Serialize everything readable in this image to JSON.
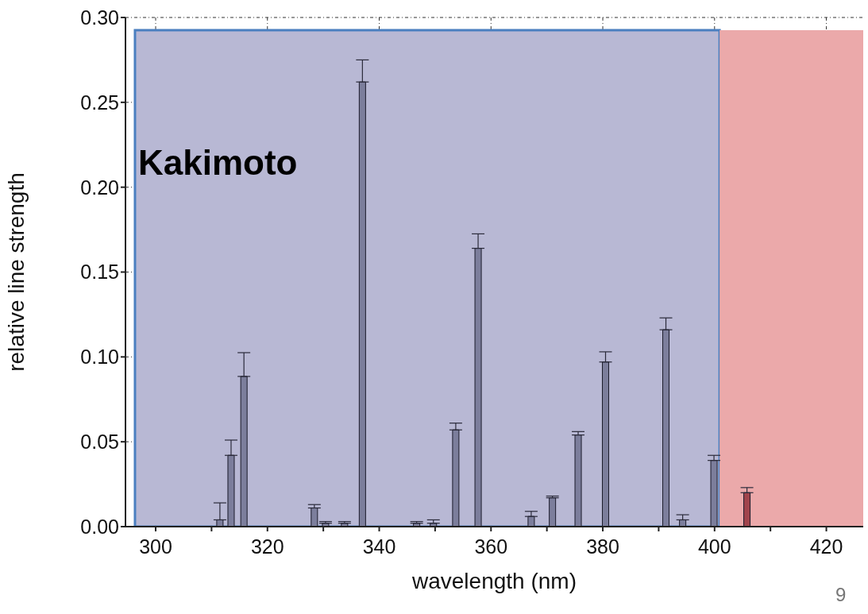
{
  "chart_data": {
    "type": "bar",
    "xlabel": "wavelength (nm)",
    "ylabel": "relative line strength",
    "x": [
      311.5,
      313.5,
      315.8,
      328.4,
      330.4,
      333.8,
      337,
      346.7,
      349.7,
      353.7,
      357.7,
      367.2,
      371,
      375.6,
      380.5,
      391.3,
      394.3,
      399.9,
      405.8
    ],
    "values": [
      0.004,
      0.042,
      0.0885,
      0.011,
      0.002,
      0.002,
      0.262,
      0.002,
      0.002,
      0.057,
      0.164,
      0.006,
      0.017,
      0.054,
      0.097,
      0.116,
      0.004,
      0.039,
      0.02
    ],
    "errors": [
      [
        0.004,
        0.014
      ],
      [
        0.042,
        0.051
      ],
      [
        0.0885,
        0.1025
      ],
      [
        0.011,
        0.013
      ],
      [
        0.002,
        0.003
      ],
      [
        0.002,
        0.003
      ],
      [
        0.262,
        0.275
      ],
      [
        0.002,
        0.003
      ],
      [
        0.002,
        0.004
      ],
      [
        0.057,
        0.061
      ],
      [
        0.164,
        0.1725
      ],
      [
        0.006,
        0.009
      ],
      [
        0.017,
        0.018
      ],
      [
        0.054,
        0.056
      ],
      [
        0.097,
        0.103
      ],
      [
        0.116,
        0.123
      ],
      [
        0.004,
        0.007
      ],
      [
        0.039,
        0.042
      ],
      [
        0.02,
        0.023
      ]
    ],
    "colors": [
      "#7c7e9c",
      "#7c7e9c",
      "#7c7e9c",
      "#7c7e9c",
      "#7c7e9c",
      "#7c7e9c",
      "#7c7e9c",
      "#7c7e9c",
      "#7c7e9c",
      "#7c7e9c",
      "#7c7e9c",
      "#7c7e9c",
      "#7c7e9c",
      "#7c7e9c",
      "#7c7e9c",
      "#7c7e9c",
      "#7c7e9c",
      "#7c7e9c",
      "#a0444c"
    ],
    "xlim": [
      294.6,
      426.6
    ],
    "xticks": [
      300,
      {
        "value": 310,
        "label": null
      },
      320,
      {
        "value": 330,
        "label": null
      },
      340,
      {
        "value": 350,
        "label": null
      },
      360,
      {
        "value": 370,
        "label": null
      },
      380,
      {
        "value": 390,
        "label": null
      },
      400,
      {
        "value": 410,
        "label": null
      },
      420
    ],
    "ylim": [
      0,
      0.3
    ],
    "yticks": [
      {
        "value": 0,
        "label": "0.00"
      },
      {
        "value": 0.05,
        "label": "0.05"
      },
      {
        "value": 0.1,
        "label": "0.10"
      },
      {
        "value": 0.15,
        "label": "0.15"
      },
      {
        "value": 0.2,
        "label": "0.20"
      },
      {
        "value": 0.25,
        "label": "0.25"
      },
      {
        "value": 0.3,
        "label": "0.30"
      }
    ],
    "grid": true,
    "bands": [
      {
        "axis": "x",
        "from": 296.3,
        "to": 400.9,
        "color": "#b8b8d4"
      },
      {
        "axis": "x",
        "from": 400.9,
        "to": 426.6,
        "color": "#eba9aa"
      }
    ],
    "annotations": [
      "Kakimoto",
      "9"
    ]
  }
}
